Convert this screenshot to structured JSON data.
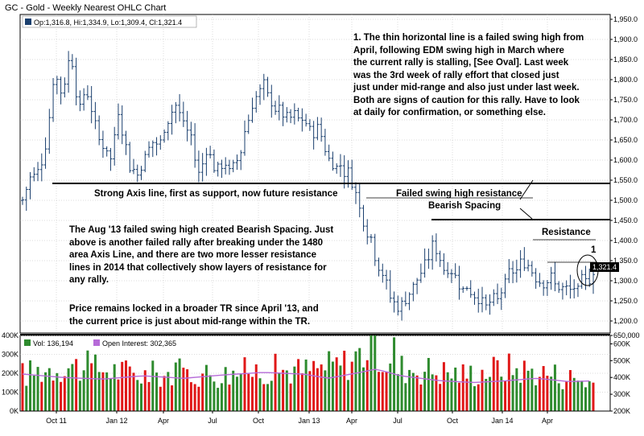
{
  "header": {
    "title": "GC - Gold - Weekly Nearest OHLC Chart",
    "ohlc_readout": "Op:1,316.8, Hi:1,334.9, Lo:1,309.4, Cl:1,321.4",
    "volume_readout": "Vol: 136,194",
    "oi_readout": "Open Interest: 302,365"
  },
  "notes": {
    "note1": "1. The thin horizontal line is a failed swing high from\nApril, following EDM swing high in March where\nthe current rally is stalling, [See Oval].  Last week\nwas the 3rd week of rally effort that closed just\njust under mid-range and also just under last week.\nBoth are signs of caution for this rally.  Have to look\nat daily for confirmation, or something else.",
    "axis_line": "Strong Axis line, first as support, now future resistance",
    "failed_swing": "Failed swing high resistance",
    "bearish_spacing": "Bearish Spacing",
    "resistance": "Resistance",
    "marker": "1",
    "note2": "The Aug '13 failed swing high created Bearish Spacing.  Just\nabove is another failed rally after breaking under the 1480\narea Axis Line, and there are two more lesser resistance\nlines in 2014 that collectively show layers of resistance for\nany rally.",
    "note3": "Price remains locked in a broader TR since April '13, and\nthe current price is just about mid-range within the TR."
  },
  "colors": {
    "price_bars": "#1a3f6e",
    "vol_up": "#2e8b2e",
    "vol_down": "#e01818",
    "oi_line": "#b66bd8",
    "last_price_box": "#000000",
    "grid": "#b8b8b8"
  },
  "chart_data": {
    "type": "ohlc",
    "title": "GC - Gold - Weekly Nearest OHLC Chart",
    "x_ticks": [
      "Oct 11",
      "Jan 12",
      "Apr",
      "Jul",
      "Oct",
      "Jan 13",
      "Apr",
      "Jul",
      "Oct",
      "Jan 14",
      "Apr"
    ],
    "price_ticks": [
      "1,950.0",
      "1,900.0",
      "1,850.0",
      "1,800.0",
      "1,750.0",
      "1,700.0",
      "1,650.0",
      "1,600.0",
      "1,550.0",
      "1,500.0",
      "1,450.0",
      "1,400.0",
      "1,350.0",
      "1,300.0",
      "1,250.0",
      "1,200.0"
    ],
    "price_ylim": [
      1170,
      1962
    ],
    "last_price_label": "1,321.4",
    "last_price": 1321.4,
    "volume_left_ticks": [
      "400K",
      "300K",
      "200K",
      "100K",
      "0K"
    ],
    "oi_right_ticks": [
      "650,000",
      "600K",
      "500K",
      "400K",
      "300K",
      "200K"
    ],
    "volume_ylim": [
      0,
      400000
    ],
    "oi_ylim": [
      200000,
      650000
    ],
    "ohlc_anchors": [
      [
        0,
        1500
      ],
      [
        1,
        1560
      ],
      [
        2,
        1580
      ],
      [
        3,
        1650
      ],
      [
        4,
        1820
      ],
      [
        5,
        1760
      ],
      [
        6,
        1880
      ],
      [
        7,
        1720
      ],
      [
        8,
        1780
      ],
      [
        9,
        1680
      ],
      [
        10,
        1640
      ],
      [
        11,
        1600
      ],
      [
        12,
        1730
      ],
      [
        13,
        1610
      ],
      [
        14,
        1560
      ],
      [
        15,
        1600
      ],
      [
        16,
        1650
      ],
      [
        17,
        1630
      ],
      [
        18,
        1700
      ],
      [
        19,
        1740
      ],
      [
        20,
        1690
      ],
      [
        21,
        1650
      ],
      [
        22,
        1560
      ],
      [
        23,
        1640
      ],
      [
        24,
        1570
      ],
      [
        25,
        1590
      ],
      [
        26,
        1570
      ],
      [
        27,
        1620
      ],
      [
        28,
        1700
      ],
      [
        29,
        1760
      ],
      [
        30,
        1780
      ],
      [
        31,
        1740
      ],
      [
        32,
        1720
      ],
      [
        33,
        1700
      ],
      [
        34,
        1710
      ],
      [
        35,
        1690
      ],
      [
        36,
        1670
      ],
      [
        37,
        1680
      ],
      [
        38,
        1600
      ],
      [
        39,
        1590
      ],
      [
        40,
        1580
      ],
      [
        41,
        1550
      ],
      [
        42,
        1480
      ],
      [
        43,
        1420
      ],
      [
        44,
        1360
      ],
      [
        45,
        1300
      ],
      [
        46,
        1250
      ],
      [
        47,
        1230
      ],
      [
        48,
        1270
      ],
      [
        49,
        1300
      ],
      [
        50,
        1330
      ],
      [
        51,
        1390
      ],
      [
        52,
        1350
      ],
      [
        53,
        1320
      ],
      [
        54,
        1310
      ],
      [
        55,
        1280
      ],
      [
        56,
        1270
      ],
      [
        57,
        1250
      ],
      [
        58,
        1240
      ],
      [
        59,
        1250
      ],
      [
        60,
        1300
      ],
      [
        61,
        1320
      ],
      [
        62,
        1340
      ],
      [
        63,
        1340
      ],
      [
        64,
        1310
      ],
      [
        65,
        1300
      ],
      [
        66,
        1300
      ],
      [
        67,
        1280
      ],
      [
        68,
        1270
      ],
      [
        69,
        1280
      ],
      [
        70,
        1300
      ],
      [
        71,
        1320
      ]
    ],
    "volume_anchors": [
      [
        0,
        200000
      ],
      [
        5,
        250000
      ],
      [
        10,
        230000
      ],
      [
        15,
        200000
      ],
      [
        20,
        210000
      ],
      [
        25,
        200000
      ],
      [
        30,
        230000
      ],
      [
        35,
        220000
      ],
      [
        40,
        260000
      ],
      [
        43,
        340000
      ],
      [
        46,
        240000
      ],
      [
        50,
        230000
      ],
      [
        55,
        200000
      ],
      [
        60,
        240000
      ],
      [
        65,
        210000
      ],
      [
        70,
        170000
      ],
      [
        71,
        150000
      ]
    ],
    "oi_anchors": [
      [
        0,
        420000
      ],
      [
        5,
        400000
      ],
      [
        10,
        390000
      ],
      [
        15,
        410000
      ],
      [
        20,
        395000
      ],
      [
        25,
        415000
      ],
      [
        30,
        430000
      ],
      [
        35,
        420000
      ],
      [
        38,
        395000
      ],
      [
        42,
        430000
      ],
      [
        44,
        450000
      ],
      [
        47,
        410000
      ],
      [
        52,
        380000
      ],
      [
        56,
        370000
      ],
      [
        60,
        380000
      ],
      [
        64,
        395000
      ],
      [
        68,
        375000
      ],
      [
        71,
        380000
      ]
    ]
  }
}
